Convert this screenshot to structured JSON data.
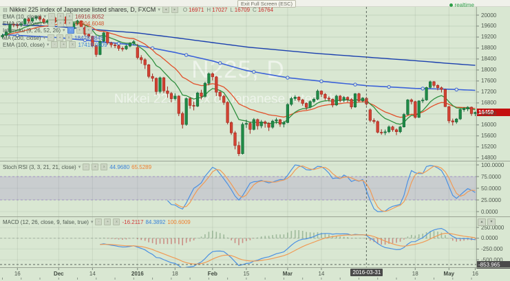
{
  "tooltip": "Exit Full Screen (ESC)",
  "realtime_label": "realtime",
  "watermark": {
    "line1": "N225, D",
    "line2": "Nikkei 225 index of Japanese listed shares"
  },
  "legend": {
    "symbol_row": {
      "collapse_icon": "⊟",
      "title": "Nikkei 225 index of Japanese listed shares, D, FXCM",
      "ohlc": [
        {
          "k": "O",
          "v": "16971"
        },
        {
          "k": "H",
          "v": "17027"
        },
        {
          "k": "L",
          "v": "16709"
        },
        {
          "k": "C",
          "v": "16764"
        }
      ]
    },
    "rows": [
      {
        "label": "EMA (10, close)",
        "selected": false,
        "values": [
          {
            "text": "16916.8052",
            "color": "#a83a3a"
          }
        ]
      },
      {
        "label": "EMA (21, close)",
        "selected": false,
        "values": [
          {
            "text": "16904.6048",
            "color": "#d2552c"
          }
        ]
      },
      {
        "label": "Ichimoku (9, 26, 52, 26)",
        "selected": true,
        "values": []
      },
      {
        "label": "MA (200, close)",
        "selected": false,
        "values": [
          {
            "text": "18478.6845",
            "color": "#3b62c8"
          }
        ]
      },
      {
        "label": "EMA (100, close)",
        "selected": false,
        "values": [
          {
            "text": "17419.0409",
            "color": "#3b82d8"
          }
        ]
      }
    ],
    "stoch_row": {
      "label": "Stoch RSI (3, 3, 21, 21, close)",
      "values": [
        {
          "text": "44.9680",
          "color": "#3b82d8"
        },
        {
          "text": "65.5289",
          "color": "#ef7f2e"
        }
      ]
    },
    "macd_row": {
      "label": "MACD (12, 26, close, 9, false, true)",
      "values": [
        {
          "text": "-16.2117",
          "color": "#d03b3b"
        },
        {
          "text": "84.3892",
          "color": "#3b82d8"
        },
        {
          "text": "100.6009",
          "color": "#ef7f2e"
        }
      ]
    }
  },
  "tags": {
    "price": "16459",
    "date": "2016-03-31",
    "macd_value": "-853.965"
  },
  "pane_buttons": [
    "▴",
    "▾"
  ],
  "colors": {
    "background": "#d9e7d2",
    "candle_up": "#1f8b45",
    "candle_up_border": "#15653a",
    "candle_down": "#d24333",
    "candle_down_border": "#9e241c",
    "ema10": "#2f8f3e",
    "ema21": "#e2502a",
    "ema100": "#3b62d8",
    "ma200": "#1a3fae",
    "stoch_k": "#4a90e2",
    "stoch_d": "#f09a54",
    "macd_line": "#4a90e2",
    "macd_signal": "#f09a54",
    "band_fill": "rgba(126,87,194,0.18)",
    "band_edge": "#7e57c2",
    "price_tag_bg": "#c40f0f",
    "crosshair_tag_bg": "#4a4a4a",
    "realtime_green": "#2d9e47"
  },
  "chart_data": {
    "type": "candlestick",
    "title": "Nikkei 225 index of Japanese listed shares, D, FXCM",
    "symbol": "N225",
    "timeframe": "D",
    "legend_position": "top-left",
    "grid": true,
    "price_ticks": [
      20000,
      19600,
      19200,
      18800,
      18400,
      18000,
      17600,
      17200,
      16800,
      16400,
      16000,
      15600,
      15200,
      14800
    ],
    "stoch_ticks": [
      {
        "v": 100,
        "label": "100.0000"
      },
      {
        "v": 75,
        "label": "75.0000"
      },
      {
        "v": 50,
        "label": "50.0000"
      },
      {
        "v": 25,
        "label": "25.0000"
      },
      {
        "v": 0,
        "label": "0.0000"
      }
    ],
    "macd_ticks": [
      {
        "v": 250,
        "label": "250.0000"
      },
      {
        "v": 0,
        "label": "0.0000"
      },
      {
        "v": -250,
        "label": "-250.000"
      },
      {
        "v": -500,
        "label": "-500.000"
      }
    ],
    "time_labels": [
      {
        "i": 4,
        "t": "16",
        "b": false
      },
      {
        "i": 15,
        "t": "Dec",
        "b": true
      },
      {
        "i": 24,
        "t": "14",
        "b": false
      },
      {
        "i": 36,
        "t": "2016",
        "b": true
      },
      {
        "i": 46,
        "t": "18",
        "b": false
      },
      {
        "i": 56,
        "t": "Feb",
        "b": true
      },
      {
        "i": 65,
        "t": "15",
        "b": false
      },
      {
        "i": 76,
        "t": "Mar",
        "b": true
      },
      {
        "i": 85,
        "t": "14",
        "b": false
      },
      {
        "i": 110,
        "t": "18",
        "b": false
      },
      {
        "i": 119,
        "t": "May",
        "b": true
      },
      {
        "i": 126,
        "t": "16",
        "b": false
      }
    ],
    "crosshair": {
      "index": 97,
      "date_label": "2016-03-31",
      "macd_value_label": "-853.965",
      "macd_hline_value": -610
    },
    "last_price": 16459,
    "candles": [
      [
        19210,
        19320,
        19140,
        19265
      ],
      [
        19265,
        19455,
        19230,
        19390
      ],
      [
        19390,
        19690,
        19365,
        19671
      ],
      [
        19671,
        19735,
        19560,
        19641
      ],
      [
        19641,
        19700,
        19520,
        19630
      ],
      [
        19630,
        19740,
        19570,
        19681
      ],
      [
        19681,
        19895,
        19650,
        19860
      ],
      [
        19860,
        19920,
        19690,
        19781
      ],
      [
        19781,
        19930,
        19720,
        19883
      ],
      [
        19883,
        19999,
        19810,
        19944
      ],
      [
        19944,
        19985,
        19780,
        19849
      ],
      [
        19849,
        19900,
        19680,
        19747
      ],
      [
        19747,
        19850,
        19660,
        19801
      ],
      [
        19801,
        19940,
        19750,
        19902
      ],
      [
        19902,
        19950,
        19700,
        19747
      ],
      [
        19747,
        20030,
        19710,
        20012
      ],
      [
        20012,
        20050,
        19870,
        19938
      ],
      [
        19938,
        19960,
        19650,
        19698
      ],
      [
        19698,
        19740,
        19430,
        19504
      ],
      [
        19504,
        19730,
        19470,
        19698
      ],
      [
        19698,
        19830,
        19640,
        19790
      ],
      [
        19790,
        19810,
        19480,
        19551
      ],
      [
        19551,
        19620,
        19240,
        19301
      ],
      [
        19301,
        19390,
        19150,
        19230
      ],
      [
        19230,
        19250,
        18830,
        18883
      ],
      [
        18883,
        18920,
        18480,
        18565
      ],
      [
        18565,
        19080,
        18540,
        19050
      ],
      [
        19050,
        19390,
        19000,
        19353
      ],
      [
        19353,
        19380,
        18920,
        18987
      ],
      [
        18987,
        19030,
        18820,
        18916
      ],
      [
        18916,
        18990,
        18800,
        18886
      ],
      [
        18886,
        18920,
        18700,
        18789
      ],
      [
        18789,
        18860,
        18680,
        18769
      ],
      [
        18769,
        18920,
        18730,
        18873
      ],
      [
        18873,
        19010,
        18830,
        18982
      ],
      [
        18982,
        19090,
        18900,
        19033
      ],
      [
        18820,
        18950,
        18390,
        18451
      ],
      [
        18451,
        18540,
        18230,
        18374
      ],
      [
        18374,
        18430,
        18040,
        18191
      ],
      [
        18191,
        18220,
        17700,
        17767
      ],
      [
        17767,
        17870,
        17580,
        17698
      ],
      [
        17698,
        17730,
        17100,
        17218
      ],
      [
        17218,
        17760,
        17150,
        17716
      ],
      [
        17716,
        17750,
        17160,
        17240
      ],
      [
        17240,
        17400,
        16990,
        17147
      ],
      [
        17147,
        17200,
        16820,
        16956
      ],
      [
        16956,
        17150,
        16890,
        17048
      ],
      [
        17048,
        17080,
        16320,
        16416
      ],
      [
        16416,
        16480,
        15870,
        16017
      ],
      [
        16017,
        17000,
        15970,
        16959
      ],
      [
        16959,
        17020,
        16590,
        16708
      ],
      [
        16708,
        16850,
        16530,
        16683
      ],
      [
        16683,
        17210,
        16650,
        17164
      ],
      [
        17164,
        17280,
        16930,
        17041
      ],
      [
        17041,
        17570,
        16990,
        17518
      ],
      [
        17518,
        17910,
        17440,
        17865
      ],
      [
        17865,
        17910,
        17620,
        17751
      ],
      [
        17751,
        17780,
        17050,
        17191
      ],
      [
        17191,
        17240,
        16900,
        17045
      ],
      [
        17045,
        17100,
        16730,
        16820
      ],
      [
        16820,
        16860,
        16020,
        16085
      ],
      [
        16085,
        16130,
        15640,
        15713
      ],
      [
        15713,
        15780,
        15110,
        15250
      ],
      [
        15250,
        15390,
        14865,
        14953
      ],
      [
        14953,
        16090,
        14920,
        16022
      ],
      [
        16022,
        16190,
        15890,
        16054
      ],
      [
        16054,
        16120,
        15680,
        15836
      ],
      [
        15836,
        16250,
        15800,
        16196
      ],
      [
        16196,
        16230,
        15830,
        15967
      ],
      [
        15967,
        16180,
        15880,
        16111
      ],
      [
        16111,
        16160,
        15900,
        16052
      ],
      [
        16052,
        16100,
        15780,
        15915
      ],
      [
        15915,
        16190,
        15860,
        16140
      ],
      [
        16140,
        16260,
        16040,
        16188
      ],
      [
        16188,
        16220,
        15930,
        16027
      ],
      [
        16027,
        16150,
        15910,
        16085
      ],
      [
        16085,
        16790,
        16060,
        16747
      ],
      [
        16747,
        17020,
        16690,
        16961
      ],
      [
        16961,
        17080,
        16880,
        17015
      ],
      [
        17015,
        17050,
        16830,
        16911
      ],
      [
        16911,
        16950,
        16700,
        16783
      ],
      [
        16783,
        16820,
        16550,
        16642
      ],
      [
        16642,
        16890,
        16600,
        16852
      ],
      [
        16852,
        17000,
        16800,
        16939
      ],
      [
        16939,
        17290,
        16900,
        17234
      ],
      [
        17234,
        17260,
        17020,
        17117
      ],
      [
        17117,
        17160,
        16900,
        16974
      ],
      [
        16974,
        17040,
        16850,
        16937
      ],
      [
        16937,
        16960,
        16640,
        16725
      ],
      [
        16725,
        17100,
        16690,
        17049
      ],
      [
        17049,
        17090,
        16820,
        16893
      ],
      [
        16893,
        17050,
        16830,
        17003
      ],
      [
        17003,
        17040,
        16830,
        16930
      ],
      [
        16930,
        16970,
        16580,
        16654
      ],
      [
        16654,
        17160,
        16620,
        17135
      ],
      [
        17135,
        17170,
        16830,
        16879
      ],
      [
        16879,
        17010,
        16820,
        16979
      ],
      [
        16971,
        17027,
        16709,
        16764
      ],
      [
        16550,
        16600,
        16100,
        16164
      ],
      [
        16164,
        16240,
        16050,
        16123
      ],
      [
        16123,
        16160,
        15690,
        15733
      ],
      [
        15733,
        15840,
        15640,
        15715
      ],
      [
        15715,
        15830,
        15630,
        15750
      ],
      [
        15750,
        15980,
        15700,
        15928
      ],
      [
        15928,
        15970,
        15750,
        15822
      ],
      [
        15822,
        15870,
        15630,
        15751
      ],
      [
        15751,
        15960,
        15700,
        15928
      ],
      [
        15928,
        16430,
        15900,
        16381
      ],
      [
        16381,
        16940,
        16350,
        16911
      ],
      [
        16911,
        16960,
        16750,
        16848
      ],
      [
        16848,
        16880,
        16230,
        16276
      ],
      [
        16276,
        16900,
        16250,
        16874
      ],
      [
        16874,
        16990,
        16800,
        16907
      ],
      [
        16907,
        17390,
        16880,
        17363
      ],
      [
        17363,
        17613,
        17330,
        17572
      ],
      [
        17572,
        17600,
        17360,
        17439
      ],
      [
        17439,
        17480,
        17260,
        17353
      ],
      [
        17353,
        17400,
        17180,
        17290
      ],
      [
        17290,
        17310,
        16650,
        16666
      ],
      [
        16666,
        16690,
        16060,
        16147
      ],
      [
        16147,
        16230,
        15980,
        16107
      ],
      [
        16107,
        16250,
        16040,
        16216
      ],
      [
        16216,
        16590,
        16180,
        16565
      ],
      [
        16565,
        16650,
        16480,
        16579
      ],
      [
        16579,
        16680,
        16500,
        16646
      ],
      [
        16646,
        16670,
        16330,
        16412
      ],
      [
        16412,
        16490,
        16320,
        16459
      ]
    ],
    "overlays": {
      "ema10_period": 10,
      "ema21_period": 21,
      "ema100_waypoints": [
        [
          0,
          19290
        ],
        [
          15,
          19180
        ],
        [
          24,
          19060
        ],
        [
          36,
          18900
        ],
        [
          46,
          18640
        ],
        [
          56,
          18330
        ],
        [
          65,
          17980
        ],
        [
          76,
          17720
        ],
        [
          85,
          17590
        ],
        [
          97,
          17430
        ],
        [
          110,
          17330
        ],
        [
          119,
          17300
        ],
        [
          126,
          17260
        ]
      ],
      "ma200_waypoints": [
        [
          0,
          19670
        ],
        [
          15,
          19580
        ],
        [
          24,
          19480
        ],
        [
          36,
          19350
        ],
        [
          46,
          19180
        ],
        [
          56,
          19000
        ],
        [
          65,
          18840
        ],
        [
          76,
          18700
        ],
        [
          85,
          18590
        ],
        [
          97,
          18470
        ],
        [
          110,
          18340
        ],
        [
          119,
          18240
        ],
        [
          126,
          18170
        ]
      ],
      "ema100_marker_step": 9
    },
    "stoch_rsi": {
      "rsi_period": 21,
      "stoch_period": 21,
      "k_smooth": 3,
      "d_smooth": 3,
      "band": [
        25,
        75
      ],
      "range": [
        0,
        100
      ]
    },
    "macd": {
      "fast": 12,
      "slow": 26,
      "signal": 9
    }
  }
}
